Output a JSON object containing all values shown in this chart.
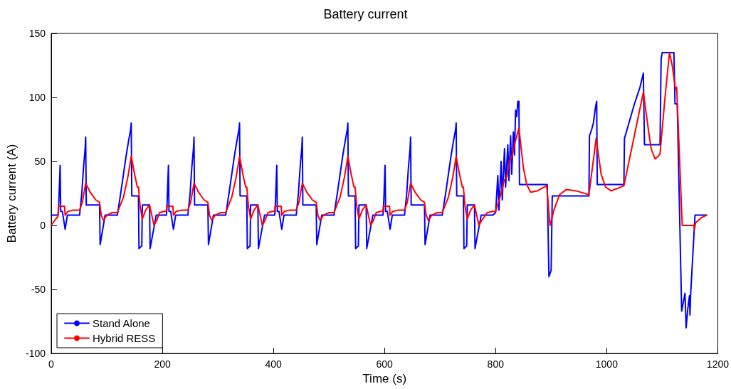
{
  "chart_data": {
    "type": "line",
    "title": "Battery current",
    "xlabel": "Time (s)",
    "ylabel": "Battery current (A)",
    "xlim": [
      0,
      1200
    ],
    "xticks": [
      0,
      200,
      400,
      600,
      800,
      1000,
      1200
    ],
    "ylim": [
      -100,
      150
    ],
    "yticks": [
      -100,
      -50,
      0,
      50,
      100,
      150
    ],
    "grid": false,
    "legend": "bottom left",
    "marker": "none",
    "line_style": "solid",
    "series": [
      {
        "name": "Stand Alone",
        "color": "#0000ff",
        "x": [
          0,
          12,
          13,
          16,
          17,
          20,
          25,
          29,
          51,
          55,
          58,
          61,
          62,
          63,
          87,
          88,
          97,
          119,
          125,
          130,
          135,
          140,
          143,
          144,
          145,
          157,
          158,
          163,
          164,
          177,
          178,
          189,
          195,
          207,
          208,
          211,
          212,
          215,
          220,
          224,
          246,
          250,
          253,
          256,
          257,
          258,
          282,
          283,
          292,
          314,
          320,
          325,
          330,
          335,
          338,
          339,
          340,
          352,
          353,
          358,
          359,
          372,
          373,
          384,
          390,
          402,
          403,
          406,
          407,
          410,
          415,
          419,
          441,
          445,
          448,
          451,
          452,
          453,
          477,
          478,
          487,
          509,
          515,
          520,
          525,
          530,
          533,
          534,
          535,
          547,
          548,
          553,
          554,
          567,
          568,
          579,
          585,
          597,
          598,
          601,
          602,
          605,
          610,
          614,
          636,
          640,
          643,
          646,
          647,
          648,
          672,
          673,
          682,
          704,
          710,
          715,
          720,
          725,
          728,
          729,
          730,
          742,
          743,
          748,
          749,
          762,
          763,
          774,
          780,
          795,
          800,
          804,
          806,
          810,
          812,
          816,
          818,
          822,
          824,
          827,
          829,
          832,
          834,
          836,
          838,
          840,
          842,
          843,
          893,
          896,
          900,
          902,
          968,
          969,
          973,
          976,
          980,
          982,
          983,
          1031,
          1032,
          1040,
          1050,
          1060,
          1066,
          1068,
          1096,
          1098,
          1100,
          1121,
          1123,
          1127,
          1135,
          1141,
          1143,
          1146,
          1149,
          1150,
          1151,
          1159,
          1180
        ],
        "values": [
          8,
          8,
          11,
          47,
          11,
          11,
          -3,
          8,
          8,
          25,
          45,
          60,
          69,
          16,
          16,
          -15,
          8,
          8,
          25,
          40,
          55,
          68,
          75,
          80,
          23,
          23,
          -18,
          -16,
          16,
          16,
          -18,
          8,
          8,
          8,
          11,
          47,
          11,
          11,
          -3,
          8,
          8,
          25,
          45,
          60,
          69,
          16,
          16,
          -15,
          8,
          8,
          25,
          40,
          55,
          68,
          75,
          80,
          23,
          23,
          -18,
          -16,
          16,
          16,
          -18,
          8,
          8,
          8,
          11,
          47,
          11,
          11,
          -3,
          8,
          8,
          25,
          45,
          60,
          69,
          16,
          16,
          -15,
          8,
          8,
          25,
          40,
          55,
          68,
          75,
          80,
          23,
          23,
          -18,
          -16,
          16,
          16,
          -18,
          8,
          8,
          8,
          11,
          47,
          11,
          11,
          -3,
          8,
          8,
          25,
          45,
          60,
          69,
          16,
          16,
          -15,
          8,
          8,
          25,
          40,
          55,
          68,
          75,
          80,
          23,
          23,
          -18,
          -16,
          16,
          16,
          -18,
          8,
          8,
          8,
          10,
          39,
          12,
          50,
          20,
          60,
          30,
          63,
          35,
          70,
          40,
          73,
          55,
          90,
          85,
          97,
          97,
          32,
          32,
          -40,
          -35,
          23,
          23,
          70,
          75,
          80,
          93,
          97,
          32,
          32,
          68,
          80,
          95,
          108,
          119,
          63,
          63,
          130,
          135,
          135,
          95,
          95,
          -67,
          -53,
          -80,
          -65,
          -55,
          -70,
          -55,
          8,
          8
        ]
      },
      {
        "name": "Hybrid RESS",
        "color": "#ff0000",
        "x": [
          0,
          8,
          12,
          13,
          24,
          25,
          30,
          40,
          51,
          56,
          62,
          70,
          80,
          87,
          90,
          94,
          100,
          110,
          119,
          130,
          138,
          144,
          150,
          155,
          157,
          160,
          164,
          170,
          177,
          181,
          185,
          190,
          195,
          203,
          207,
          208,
          219,
          220,
          225,
          235,
          246,
          251,
          257,
          265,
          275,
          282,
          285,
          289,
          295,
          305,
          314,
          325,
          333,
          339,
          345,
          350,
          352,
          355,
          359,
          365,
          372,
          376,
          380,
          385,
          390,
          398,
          402,
          403,
          414,
          415,
          420,
          430,
          441,
          446,
          452,
          460,
          470,
          477,
          480,
          484,
          490,
          500,
          509,
          520,
          528,
          534,
          540,
          545,
          547,
          550,
          554,
          560,
          567,
          571,
          575,
          580,
          585,
          593,
          597,
          598,
          609,
          610,
          615,
          625,
          636,
          641,
          647,
          655,
          665,
          672,
          675,
          679,
          685,
          695,
          704,
          715,
          723,
          729,
          735,
          740,
          742,
          745,
          749,
          755,
          762,
          766,
          770,
          775,
          785,
          795,
          800,
          810,
          815,
          820,
          825,
          830,
          835,
          842,
          850,
          856,
          863,
          875,
          892,
          898,
          905,
          915,
          927,
          945,
          968,
          981,
          990,
          998,
          1008,
          1020,
          1031,
          1066,
          1075,
          1080,
          1087,
          1093,
          1096,
          1105,
          1113,
          1118,
          1124,
          1126,
          1136,
          1157,
          1158,
          1160,
          1170,
          1180
        ],
        "values": [
          0,
          5,
          7,
          15,
          15,
          8,
          11,
          12,
          12,
          18,
          33,
          26,
          20,
          18,
          8,
          4,
          8,
          10,
          10,
          22,
          38,
          54,
          40,
          30,
          30,
          15,
          5,
          12,
          16,
          8,
          0,
          4,
          10,
          11,
          11,
          15,
          15,
          8,
          11,
          12,
          12,
          18,
          33,
          26,
          20,
          18,
          8,
          4,
          8,
          10,
          10,
          22,
          38,
          54,
          40,
          30,
          30,
          15,
          5,
          12,
          16,
          8,
          0,
          4,
          10,
          11,
          11,
          15,
          15,
          8,
          11,
          12,
          12,
          18,
          33,
          26,
          20,
          18,
          8,
          4,
          8,
          10,
          10,
          22,
          38,
          54,
          40,
          30,
          30,
          15,
          5,
          12,
          16,
          8,
          0,
          4,
          10,
          11,
          11,
          15,
          15,
          8,
          11,
          12,
          12,
          18,
          33,
          26,
          20,
          18,
          8,
          4,
          8,
          10,
          10,
          22,
          38,
          54,
          40,
          30,
          30,
          15,
          5,
          12,
          16,
          8,
          0,
          4,
          10,
          11,
          11,
          25,
          35,
          38,
          50,
          55,
          65,
          76,
          45,
          32,
          26,
          27,
          31,
          0,
          12,
          24,
          28,
          27,
          24,
          68,
          40,
          30,
          27,
          29,
          31,
          104,
          75,
          60,
          52,
          54,
          56,
          100,
          135,
          125,
          106,
          108,
          0,
          0,
          -3,
          2,
          6,
          8
        ]
      }
    ]
  }
}
